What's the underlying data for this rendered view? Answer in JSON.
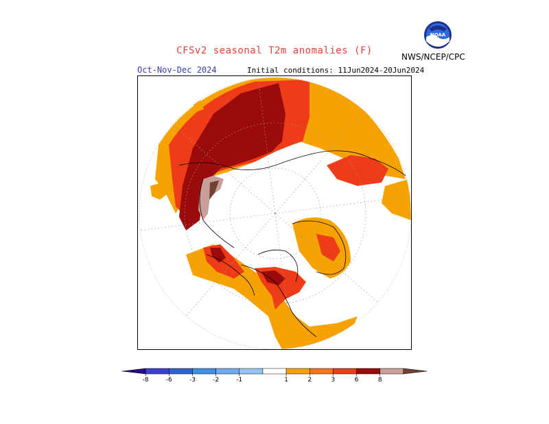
{
  "header": {
    "title": "CFSv2 seasonal T2m anomalies (F)",
    "agency": "NWS/NCEP/CPC",
    "logo_text": "NOAA",
    "period": "Oct-Nov-Dec 2024",
    "initial_conditions": "Initial conditions: 11Jun2024-20Jun2024"
  },
  "colors": {
    "title": "#e8403a",
    "period": "#2f3fb5",
    "map_outline": "#000000"
  },
  "legend": {
    "bins": [
      {
        "color": "#2a0c8a"
      },
      {
        "color": "#3f3fd0"
      },
      {
        "color": "#2e63cd"
      },
      {
        "color": "#3f8fe2"
      },
      {
        "color": "#71a9ea"
      },
      {
        "color": "#93c6f5"
      },
      {
        "color": "#ffffff"
      },
      {
        "color": "#f6a200"
      },
      {
        "color": "#f4751b"
      },
      {
        "color": "#ee3b18"
      },
      {
        "color": "#9c0b0b"
      },
      {
        "color": "#c9a099"
      },
      {
        "color": "#6f4235"
      }
    ],
    "tick_labels": [
      "-8",
      "-6",
      "-3",
      "-2",
      "-1",
      "1",
      "2",
      "3",
      "6",
      "8"
    ]
  },
  "map": {
    "projection": "polar-stereographic",
    "hemisphere": "northern"
  }
}
